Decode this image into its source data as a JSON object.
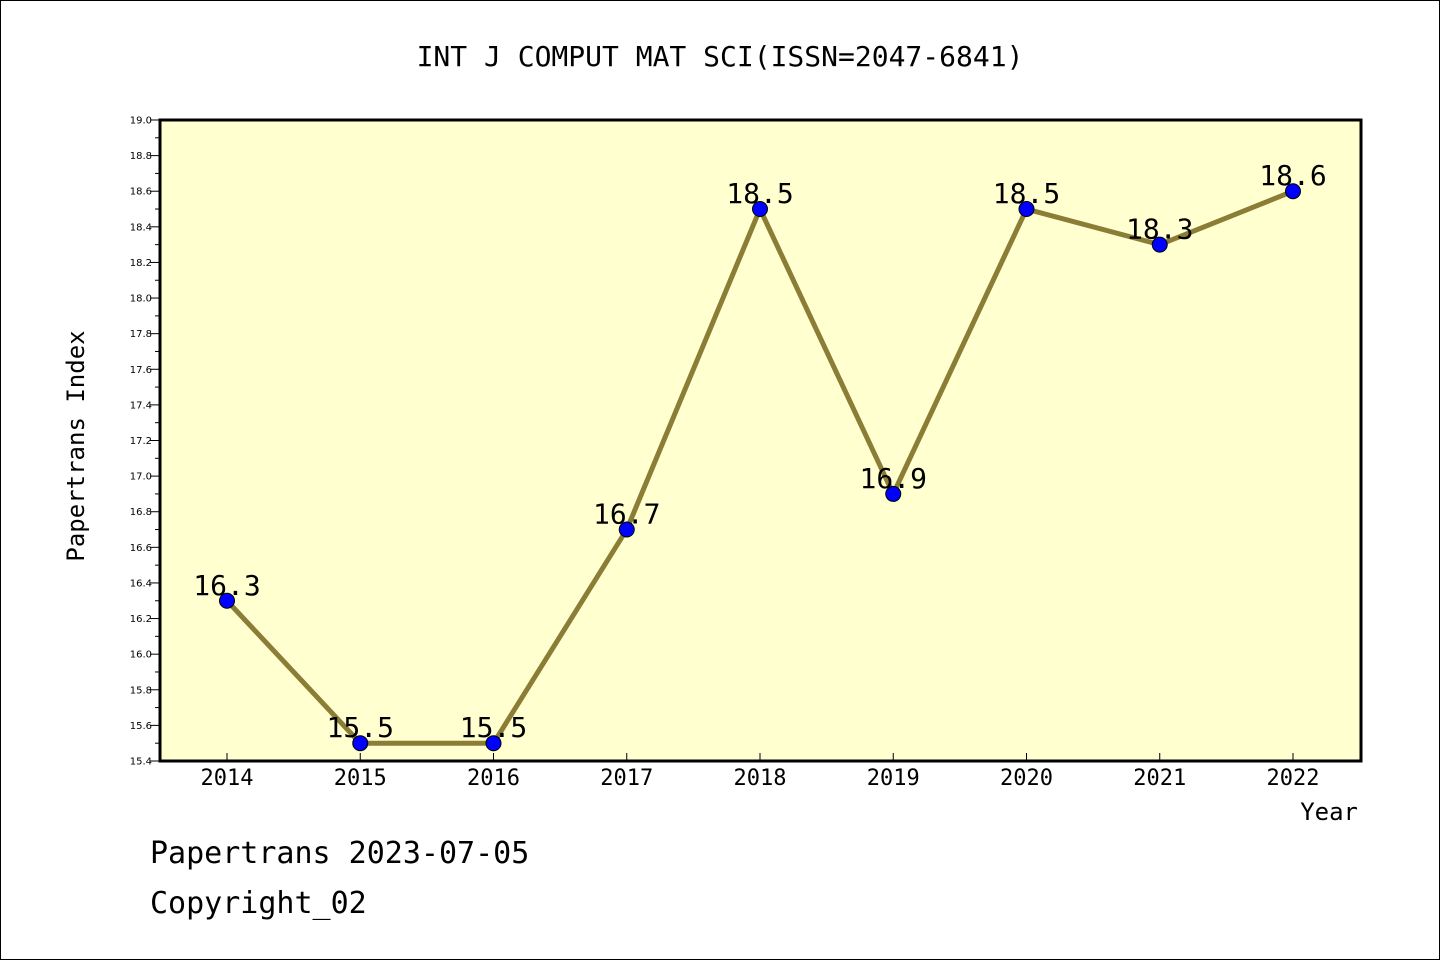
{
  "chart_data": {
    "type": "line",
    "title": "INT J COMPUT MAT SCI(ISSN=2047-6841)",
    "xlabel": "Year",
    "ylabel": "Papertrans Index",
    "categories": [
      "2014",
      "2015",
      "2016",
      "2017",
      "2018",
      "2019",
      "2020",
      "2021",
      "2022"
    ],
    "series": [
      {
        "values": [
          16.3,
          15.5,
          15.5,
          16.7,
          18.5,
          16.9,
          18.5,
          18.3,
          18.6
        ],
        "data_labels": [
          "16.3",
          "15.5",
          "15.5",
          "16.7",
          "18.5",
          "16.9",
          "18.5",
          "18.3",
          "18.6"
        ]
      }
    ],
    "ylim": [
      15.4,
      19.0
    ],
    "y_ticks": [
      "15.4",
      "15.6",
      "15.8",
      "16.0",
      "16.2",
      "16.4",
      "16.6",
      "16.8",
      "17.0",
      "17.2",
      "17.4",
      "17.6",
      "17.8",
      "18.0",
      "18.2",
      "18.4",
      "18.6",
      "18.8",
      "19.0"
    ],
    "grid": false,
    "colors": {
      "plot_background": "#ffffd0",
      "line": "#8b7d35",
      "marker": "#0000ff"
    }
  },
  "footer": {
    "date_line": "Papertrans 2023-07-05",
    "copyright": "Copyright_02"
  }
}
